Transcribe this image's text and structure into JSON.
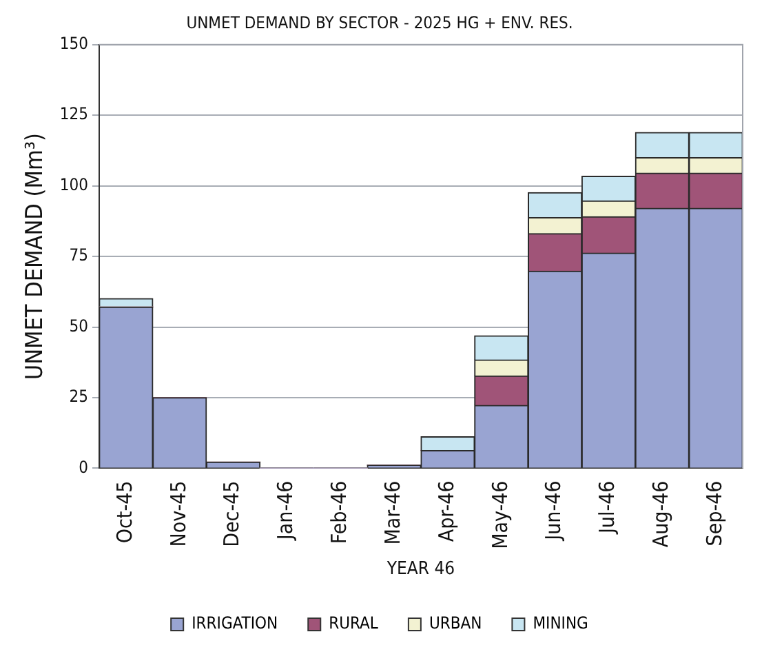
{
  "chart_data": {
    "type": "bar",
    "title": "UNMET DEMAND BY SECTOR - 2025 HG + ENV. RES.",
    "xlabel": "YEAR 46",
    "ylabel": "UNMET DEMAND (Mm³)",
    "categories": [
      "Oct-45",
      "Nov-45",
      "Dec-45",
      "Jan-46",
      "Feb-46",
      "Mar-46",
      "Apr-46",
      "May-46",
      "Jun-46",
      "Jul-46",
      "Aug-46",
      "Sep-46"
    ],
    "stacked": true,
    "series": [
      {
        "name": "IRRIGATION",
        "color": "#99a4d2",
        "values": [
          57.1,
          25,
          2.2,
          0,
          0,
          1.1,
          6.3,
          22.3,
          69.8,
          76.2,
          92.1,
          92.1
        ]
      },
      {
        "name": "RURAL",
        "color": "#a05478",
        "values": [
          0,
          0,
          0,
          0,
          0,
          0,
          0,
          10.4,
          13.3,
          12.9,
          12.4,
          12.4
        ]
      },
      {
        "name": "URBAN",
        "color": "#f3f2d2",
        "values": [
          0,
          0,
          0,
          0,
          0,
          0,
          0,
          5.7,
          5.7,
          5.6,
          5.5,
          5.5
        ]
      },
      {
        "name": "MINING",
        "color": "#c8e6f2",
        "values": [
          3.0,
          0,
          0,
          0,
          0,
          0,
          4.9,
          8.5,
          8.8,
          8.7,
          8.9,
          8.9
        ]
      }
    ],
    "ylim": [
      0,
      150
    ],
    "yticks": [
      0,
      25,
      50,
      75,
      100,
      125,
      150
    ],
    "grid": "y",
    "legend": "bottom"
  }
}
